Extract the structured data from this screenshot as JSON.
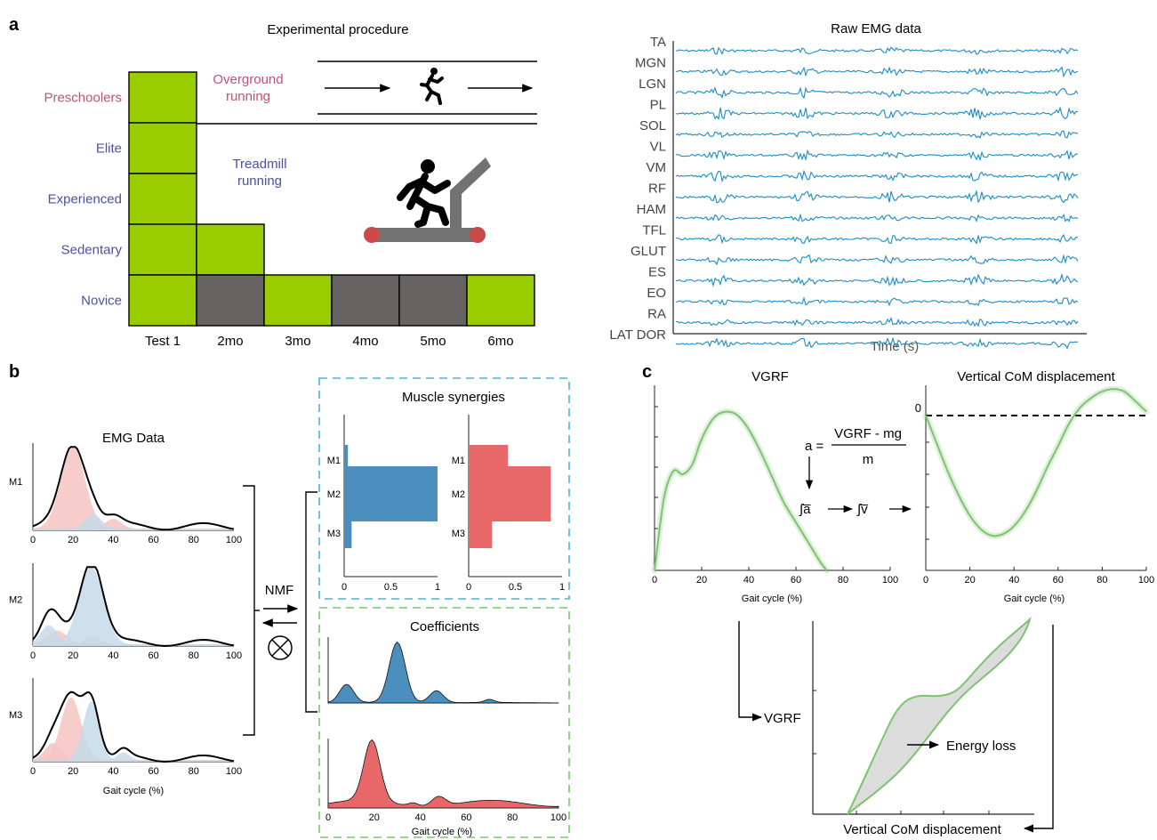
{
  "panels": {
    "a": "a",
    "b": "b",
    "c": "c"
  },
  "procedure": {
    "title": "Experimental procedure",
    "groups": [
      "Preschoolers",
      "Elite",
      "Experienced",
      "Sedentary",
      "Novice"
    ],
    "timepoints": [
      "Test 1",
      "2mo",
      "3mo",
      "4mo",
      "5mo",
      "6mo"
    ],
    "overground_label": [
      "Overground",
      "running"
    ],
    "treadmill_label": [
      "Treadmill",
      "running"
    ],
    "colors": {
      "active": "#9acd00",
      "inactive": "#666362",
      "preschool": "#c0507a",
      "group": "#4a52a0",
      "treadmill": "#727272",
      "roller": "#c94a48"
    }
  },
  "raw_emg": {
    "title": "Raw EMG data",
    "muscles": [
      "TA",
      "MGN",
      "LGN",
      "PL",
      "SOL",
      "VL",
      "VM",
      "RF",
      "HAM",
      "TFL",
      "GLUT",
      "ES",
      "EO",
      "RA",
      "LAT DOR"
    ],
    "xlabel": "Time (s)",
    "color": "#1a8dc4"
  },
  "panel_b": {
    "emg_title": "EMG Data",
    "row_labels": [
      "M1",
      "M2",
      "M3"
    ],
    "x_ticks": [
      "0",
      "20",
      "40",
      "60",
      "80",
      "100"
    ],
    "xlabel": "Gait cycle (%)",
    "nmf_label": "NMF",
    "synergies_title": "Muscle synergies",
    "syn_ticks": [
      "0",
      "0.5",
      "1"
    ],
    "coefficients_title": "Coefficients",
    "colors": {
      "blue": "#4a8fbe",
      "red": "#e8686a",
      "light_red": "#f4c4c2",
      "light_blue": "#c5d9ea",
      "cyan_box": "#4fb3d3",
      "green_box": "#7cc46f"
    }
  },
  "chart_data": [
    {
      "type": "bar",
      "title": "Muscle synergies",
      "categories": [
        "M1",
        "M2",
        "M3"
      ],
      "values": [
        0.04,
        1.0,
        0.08
      ],
      "xlim": [
        0,
        1
      ]
    },
    {
      "type": "bar",
      "title": "",
      "categories": [
        "M1",
        "M2",
        "M3"
      ],
      "values": [
        0.42,
        0.88,
        0.25
      ],
      "xlim": [
        0,
        1
      ]
    },
    {
      "type": "line",
      "title": "VGRF",
      "xlabel": "Gait cycle (%)",
      "x": [
        0,
        4,
        8,
        12,
        16,
        20,
        25,
        30,
        35,
        40,
        45,
        50,
        55,
        60,
        65,
        70,
        73
      ],
      "y": [
        0.0,
        0.45,
        0.62,
        0.6,
        0.66,
        0.82,
        0.95,
        0.99,
        0.97,
        0.88,
        0.74,
        0.58,
        0.42,
        0.3,
        0.18,
        0.06,
        0.0
      ],
      "xlim": [
        0,
        100
      ],
      "x_ticks": [
        0,
        20,
        40,
        60,
        80,
        100
      ],
      "color": "#7cc46f"
    },
    {
      "type": "line",
      "title": "Vertical CoM displacement",
      "xlabel": "Gait cycle (%)",
      "x": [
        0,
        5,
        10,
        15,
        20,
        25,
        30,
        35,
        40,
        45,
        50,
        55,
        60,
        65,
        70,
        75,
        80,
        85,
        90,
        95,
        100
      ],
      "y": [
        0.0,
        -0.35,
        -0.7,
        -1.0,
        -1.25,
        -1.42,
        -1.5,
        -1.48,
        -1.38,
        -1.2,
        -0.95,
        -0.65,
        -0.38,
        -0.1,
        0.1,
        0.22,
        0.3,
        0.33,
        0.3,
        0.18,
        0.05
      ],
      "xlim": [
        0,
        100
      ],
      "x_ticks": [
        0,
        20,
        40,
        60,
        80,
        100
      ],
      "zero_label": "0",
      "color": "#7cc46f"
    }
  ],
  "formula": {
    "lhs": "a =",
    "numerator": "VGRF - mg",
    "denominator": "m",
    "int_a": "∫a̅",
    "int_v": "∫v̅"
  },
  "loop": {
    "ylabel": "VGRF",
    "xlabel": "Vertical CoM displacement",
    "annotation": "Energy loss"
  }
}
